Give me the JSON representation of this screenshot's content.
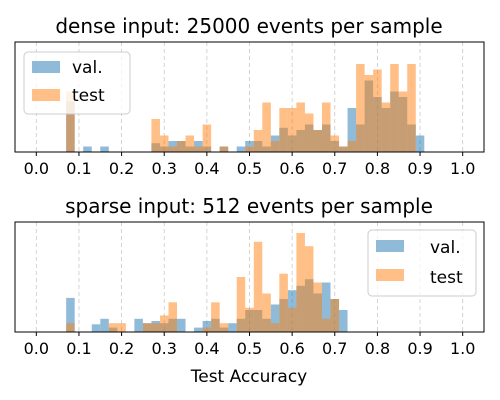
{
  "chart_data": [
    {
      "type": "histogram",
      "title": "dense input: 25000 events per sample",
      "xlabel": "",
      "ylabel": "",
      "xlim": [
        -0.05,
        1.05
      ],
      "ylim": [
        0,
        1
      ],
      "xticks": [
        "0.0",
        "0.1",
        "0.2",
        "0.3",
        "0.4",
        "0.5",
        "0.6",
        "0.7",
        "0.8",
        "0.9",
        "1.0"
      ],
      "yticks_visible": false,
      "grid": "x-dashed",
      "legend": "upper-left",
      "bin_width": 0.02,
      "series": [
        {
          "name": "val.",
          "color": "#1f77b4",
          "alpha": 0.5,
          "bins": [
            [
              0.08,
              0.46
            ],
            [
              0.12,
              0.05
            ],
            [
              0.16,
              0.05
            ],
            [
              0.28,
              0.08
            ],
            [
              0.3,
              0.05
            ],
            [
              0.32,
              0.1
            ],
            [
              0.34,
              0.1
            ],
            [
              0.36,
              0.05
            ],
            [
              0.38,
              0.1
            ],
            [
              0.4,
              0.05
            ],
            [
              0.44,
              0.05
            ],
            [
              0.48,
              0.05
            ],
            [
              0.5,
              0.1
            ],
            [
              0.52,
              0.1
            ],
            [
              0.54,
              0.05
            ],
            [
              0.56,
              0.15
            ],
            [
              0.58,
              0.22
            ],
            [
              0.6,
              0.15
            ],
            [
              0.62,
              0.2
            ],
            [
              0.64,
              0.25
            ],
            [
              0.66,
              0.2
            ],
            [
              0.68,
              0.25
            ],
            [
              0.7,
              0.1
            ],
            [
              0.72,
              0.05
            ],
            [
              0.74,
              0.4
            ],
            [
              0.76,
              0.25
            ],
            [
              0.78,
              0.65
            ],
            [
              0.8,
              0.5
            ],
            [
              0.82,
              0.4
            ],
            [
              0.84,
              0.55
            ],
            [
              0.86,
              0.5
            ],
            [
              0.88,
              0.25
            ],
            [
              0.9,
              0.15
            ]
          ]
        },
        {
          "name": "test",
          "color": "#ff7f0e",
          "alpha": 0.5,
          "bins": [
            [
              0.08,
              0.55
            ],
            [
              0.28,
              0.3
            ],
            [
              0.3,
              0.15
            ],
            [
              0.32,
              0.05
            ],
            [
              0.34,
              0.1
            ],
            [
              0.36,
              0.15
            ],
            [
              0.38,
              0.05
            ],
            [
              0.4,
              0.25
            ],
            [
              0.44,
              0.05
            ],
            [
              0.5,
              0.05
            ],
            [
              0.52,
              0.2
            ],
            [
              0.54,
              0.45
            ],
            [
              0.56,
              0.1
            ],
            [
              0.58,
              0.4
            ],
            [
              0.6,
              0.4
            ],
            [
              0.62,
              0.45
            ],
            [
              0.64,
              0.35
            ],
            [
              0.66,
              0.2
            ],
            [
              0.68,
              0.45
            ],
            [
              0.7,
              0.15
            ],
            [
              0.72,
              0.05
            ],
            [
              0.74,
              0.1
            ],
            [
              0.76,
              0.8
            ],
            [
              0.78,
              0.7
            ],
            [
              0.8,
              0.75
            ],
            [
              0.82,
              0.45
            ],
            [
              0.84,
              0.8
            ],
            [
              0.86,
              0.55
            ],
            [
              0.88,
              0.8
            ]
          ]
        }
      ]
    },
    {
      "type": "histogram",
      "title": "sparse input: 512 events per sample",
      "xlabel": "Test Accuracy",
      "ylabel": "",
      "xlim": [
        -0.05,
        1.05
      ],
      "ylim": [
        0,
        1
      ],
      "xticks": [
        "0.0",
        "0.1",
        "0.2",
        "0.3",
        "0.4",
        "0.5",
        "0.6",
        "0.7",
        "0.8",
        "0.9",
        "1.0"
      ],
      "yticks_visible": false,
      "grid": "x-dashed",
      "legend": "upper-right",
      "bin_width": 0.02,
      "series": [
        {
          "name": "val.",
          "color": "#1f77b4",
          "alpha": 0.5,
          "bins": [
            [
              0.08,
              0.31
            ],
            [
              0.14,
              0.07
            ],
            [
              0.16,
              0.12
            ],
            [
              0.18,
              0.04
            ],
            [
              0.24,
              0.12
            ],
            [
              0.26,
              0.08
            ],
            [
              0.28,
              0.1
            ],
            [
              0.3,
              0.08
            ],
            [
              0.32,
              0.12
            ],
            [
              0.34,
              0.12
            ],
            [
              0.38,
              0.04
            ],
            [
              0.4,
              0.1
            ],
            [
              0.42,
              0.12
            ],
            [
              0.44,
              0.04
            ],
            [
              0.46,
              0.08
            ],
            [
              0.48,
              0.12
            ],
            [
              0.5,
              0.2
            ],
            [
              0.52,
              0.2
            ],
            [
              0.54,
              0.12
            ],
            [
              0.56,
              0.25
            ],
            [
              0.58,
              0.3
            ],
            [
              0.6,
              0.38
            ],
            [
              0.62,
              0.42
            ],
            [
              0.64,
              0.48
            ],
            [
              0.66,
              0.35
            ],
            [
              0.68,
              0.45
            ],
            [
              0.7,
              0.3
            ],
            [
              0.72,
              0.2
            ]
          ]
        },
        {
          "name": "test",
          "color": "#ff7f0e",
          "alpha": 0.5,
          "bins": [
            [
              0.08,
              0.08
            ],
            [
              0.18,
              0.08
            ],
            [
              0.2,
              0.08
            ],
            [
              0.26,
              0.08
            ],
            [
              0.28,
              0.08
            ],
            [
              0.3,
              0.15
            ],
            [
              0.32,
              0.27
            ],
            [
              0.4,
              0.04
            ],
            [
              0.42,
              0.27
            ],
            [
              0.44,
              0.08
            ],
            [
              0.48,
              0.5
            ],
            [
              0.5,
              0.22
            ],
            [
              0.52,
              0.82
            ],
            [
              0.54,
              0.35
            ],
            [
              0.56,
              0.08
            ],
            [
              0.58,
              0.53
            ],
            [
              0.6,
              0.22
            ],
            [
              0.62,
              0.9
            ],
            [
              0.64,
              0.78
            ],
            [
              0.66,
              0.45
            ],
            [
              0.68,
              0.12
            ],
            [
              0.7,
              0.3
            ]
          ]
        }
      ]
    }
  ]
}
